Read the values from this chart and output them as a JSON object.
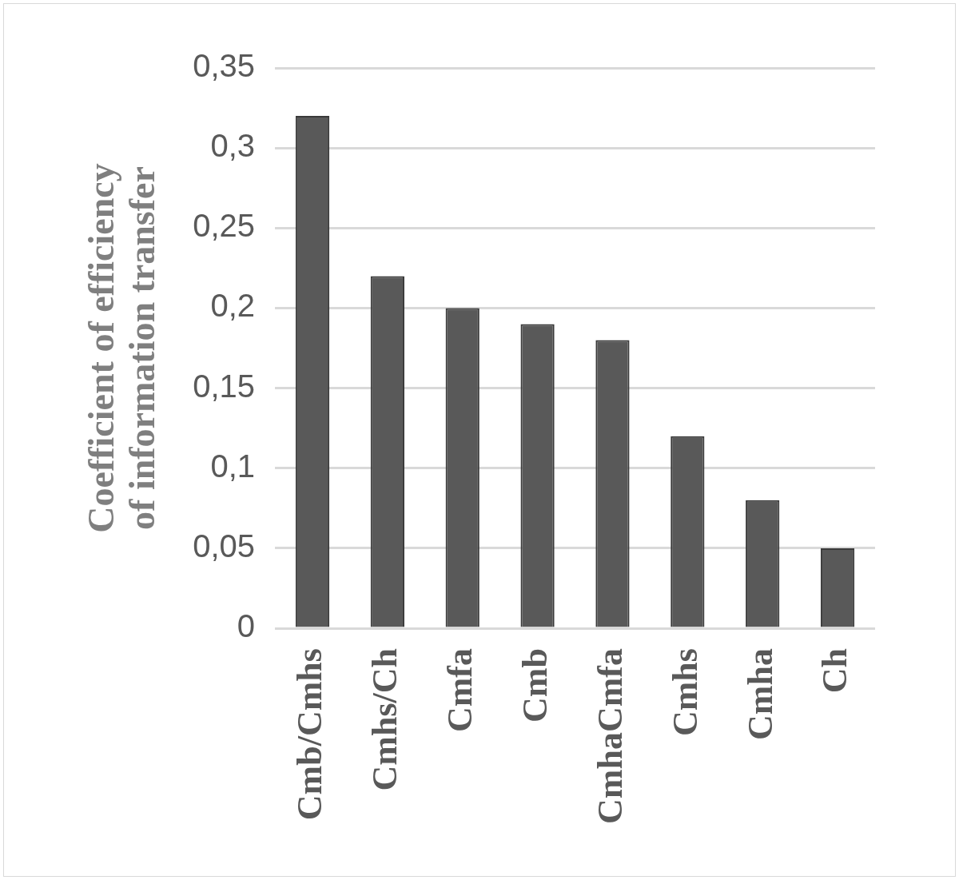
{
  "chart_data": {
    "type": "bar",
    "ylabel": "Coefficient of efficiency of information transfer",
    "categories": [
      "Cmb/Cmhs",
      "Cmhs/Ch",
      "Cmfa",
      "Cmb",
      "CmhaCmfa",
      "Cmhs",
      "Cmha",
      "Ch"
    ],
    "values": [
      0.32,
      0.22,
      0.2,
      0.19,
      0.18,
      0.12,
      0.08,
      0.05
    ],
    "color": "#595959",
    "ylim": [
      0,
      0.35
    ],
    "yticks": [
      {
        "value": 0,
        "label": "0"
      },
      {
        "value": 0.05,
        "label": "0,05"
      },
      {
        "value": 0.1,
        "label": "0,1"
      },
      {
        "value": 0.15,
        "label": "0,15"
      },
      {
        "value": 0.2,
        "label": "0,2"
      },
      {
        "value": 0.25,
        "label": "0,25"
      },
      {
        "value": 0.3,
        "label": "0,3"
      },
      {
        "value": 0.35,
        "label": "0,35"
      }
    ],
    "grid": "y",
    "legend": false
  }
}
